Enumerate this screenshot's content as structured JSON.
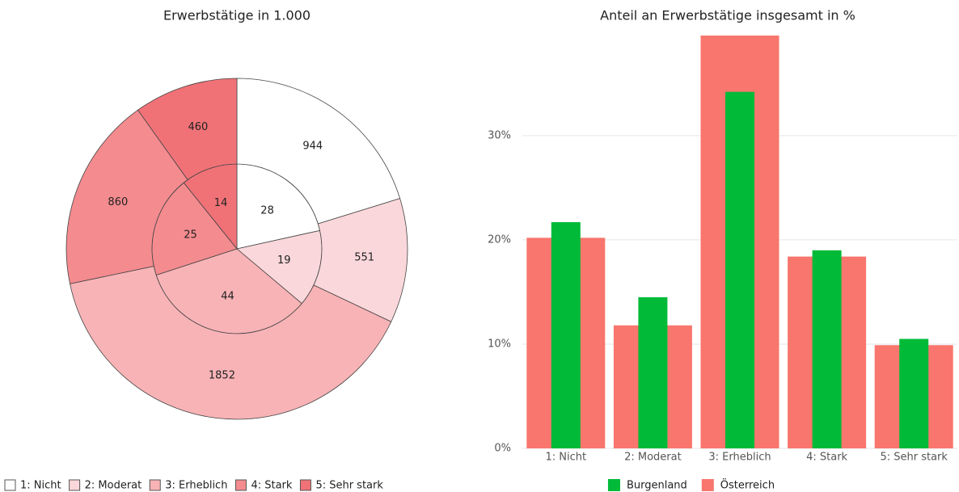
{
  "chart_data": [
    {
      "type": "pie",
      "title": "Erwerbstätige in 1.000",
      "categories": [
        "1: Nicht",
        "2: Moderat",
        "3: Erheblich",
        "4: Stark",
        "5: Sehr stark"
      ],
      "colors": [
        "#ffffff",
        "#fad7da",
        "#f8b3b6",
        "#f48b8f",
        "#f07277"
      ],
      "series": [
        {
          "values": [
            28,
            19,
            44,
            25,
            14
          ]
        },
        {
          "values": [
            944,
            551,
            1852,
            860,
            460
          ]
        }
      ]
    },
    {
      "type": "bar",
      "title": "Anteil an Erwerbstätige insgesamt in %",
      "categories": [
        "1: Nicht",
        "2: Moderat",
        "3: Erheblich",
        "4: Stark",
        "5: Sehr stark"
      ],
      "series": [
        {
          "name": "Österreich",
          "color": "#f8766d",
          "values": [
            20.2,
            11.8,
            39.7,
            18.4,
            9.9
          ]
        },
        {
          "name": "Burgenland",
          "color": "#00ba38",
          "values": [
            21.7,
            14.5,
            34.2,
            19.0,
            10.5
          ]
        }
      ],
      "ylim": [
        0,
        39.6
      ],
      "yticks": [
        {
          "value": 0,
          "label": "0%"
        },
        {
          "value": 10,
          "label": "10%"
        },
        {
          "value": 20,
          "label": "20%"
        },
        {
          "value": 30,
          "label": "30%"
        }
      ],
      "grid": true
    }
  ]
}
